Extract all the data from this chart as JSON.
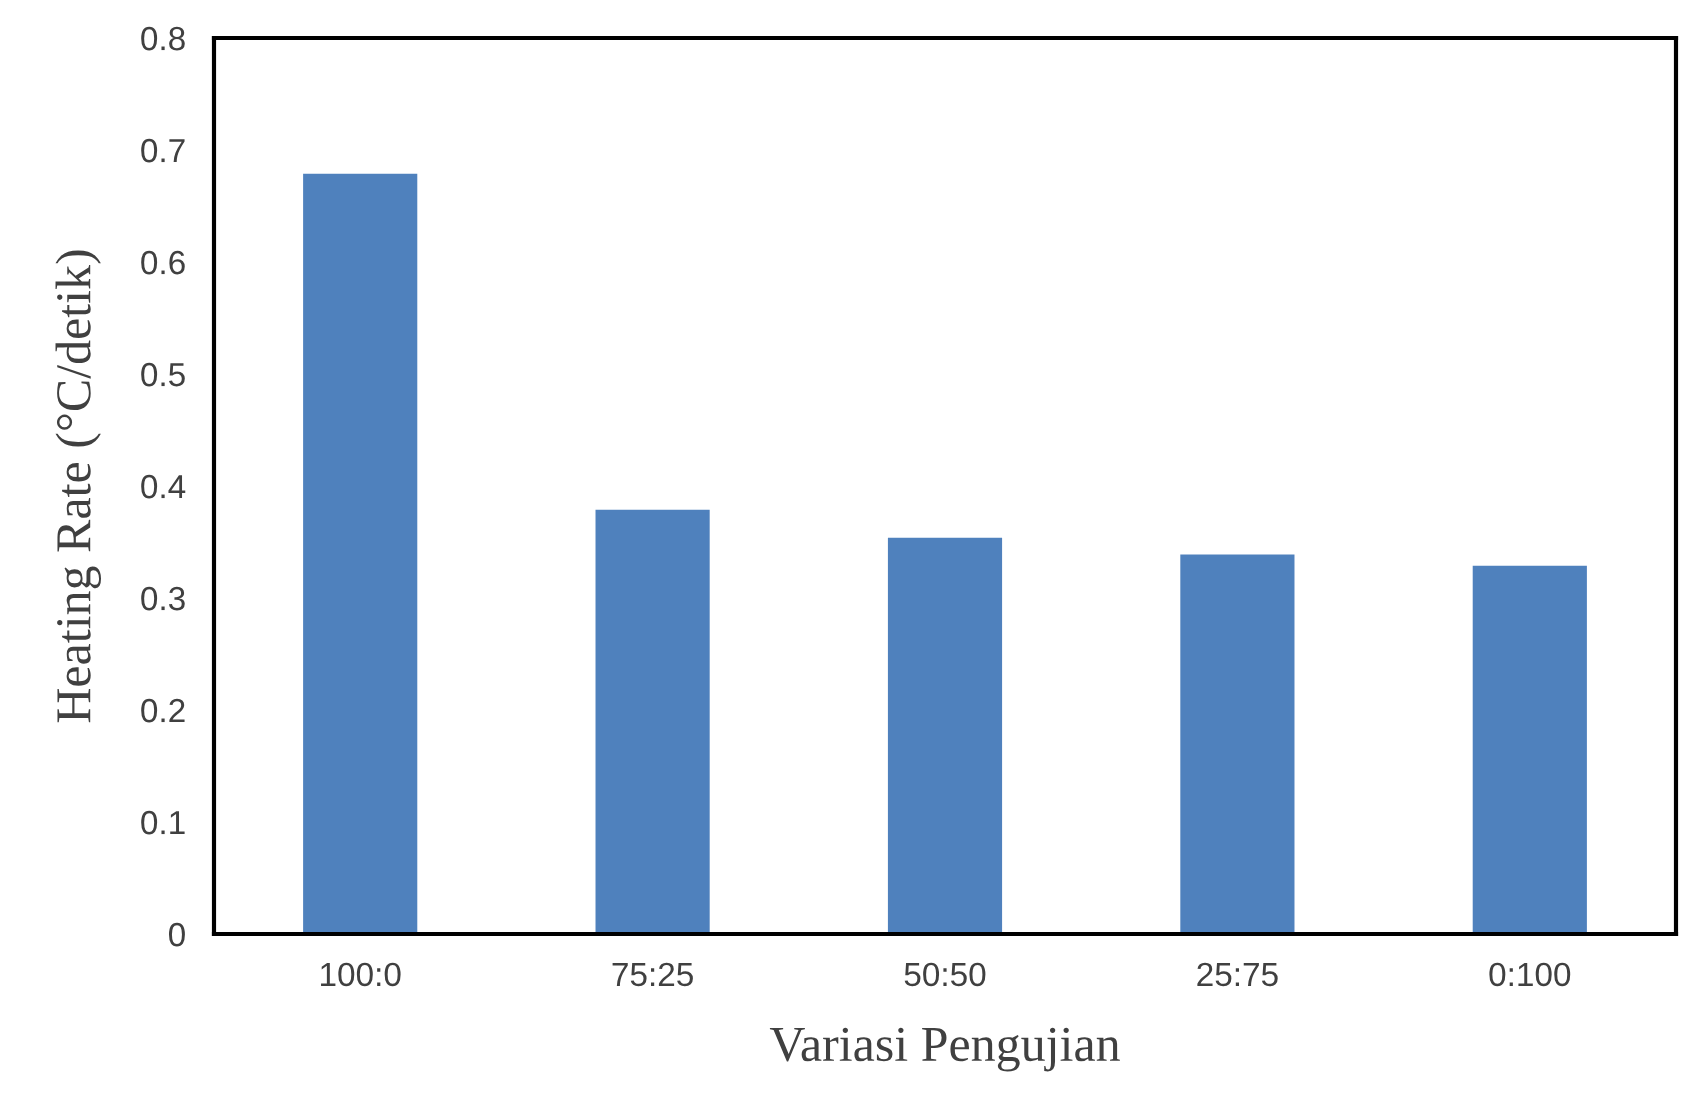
{
  "chart_data": {
    "type": "bar",
    "xlabel": "Variasi Pengujian",
    "ylabel": "Heating Rate (°C/detik)",
    "categories": [
      "100:0",
      "75:25",
      "50:50",
      "25:75",
      "0:100"
    ],
    "values": [
      0.68,
      0.38,
      0.355,
      0.34,
      0.33
    ],
    "color": "#4f81bd",
    "ylim": [
      0,
      0.8
    ],
    "yticks": [
      {
        "value": 0,
        "label": "0"
      },
      0.1,
      0.2,
      0.3,
      0.4,
      0.5,
      0.6,
      0.7,
      0.8
    ],
    "grid": false,
    "legend": false
  }
}
